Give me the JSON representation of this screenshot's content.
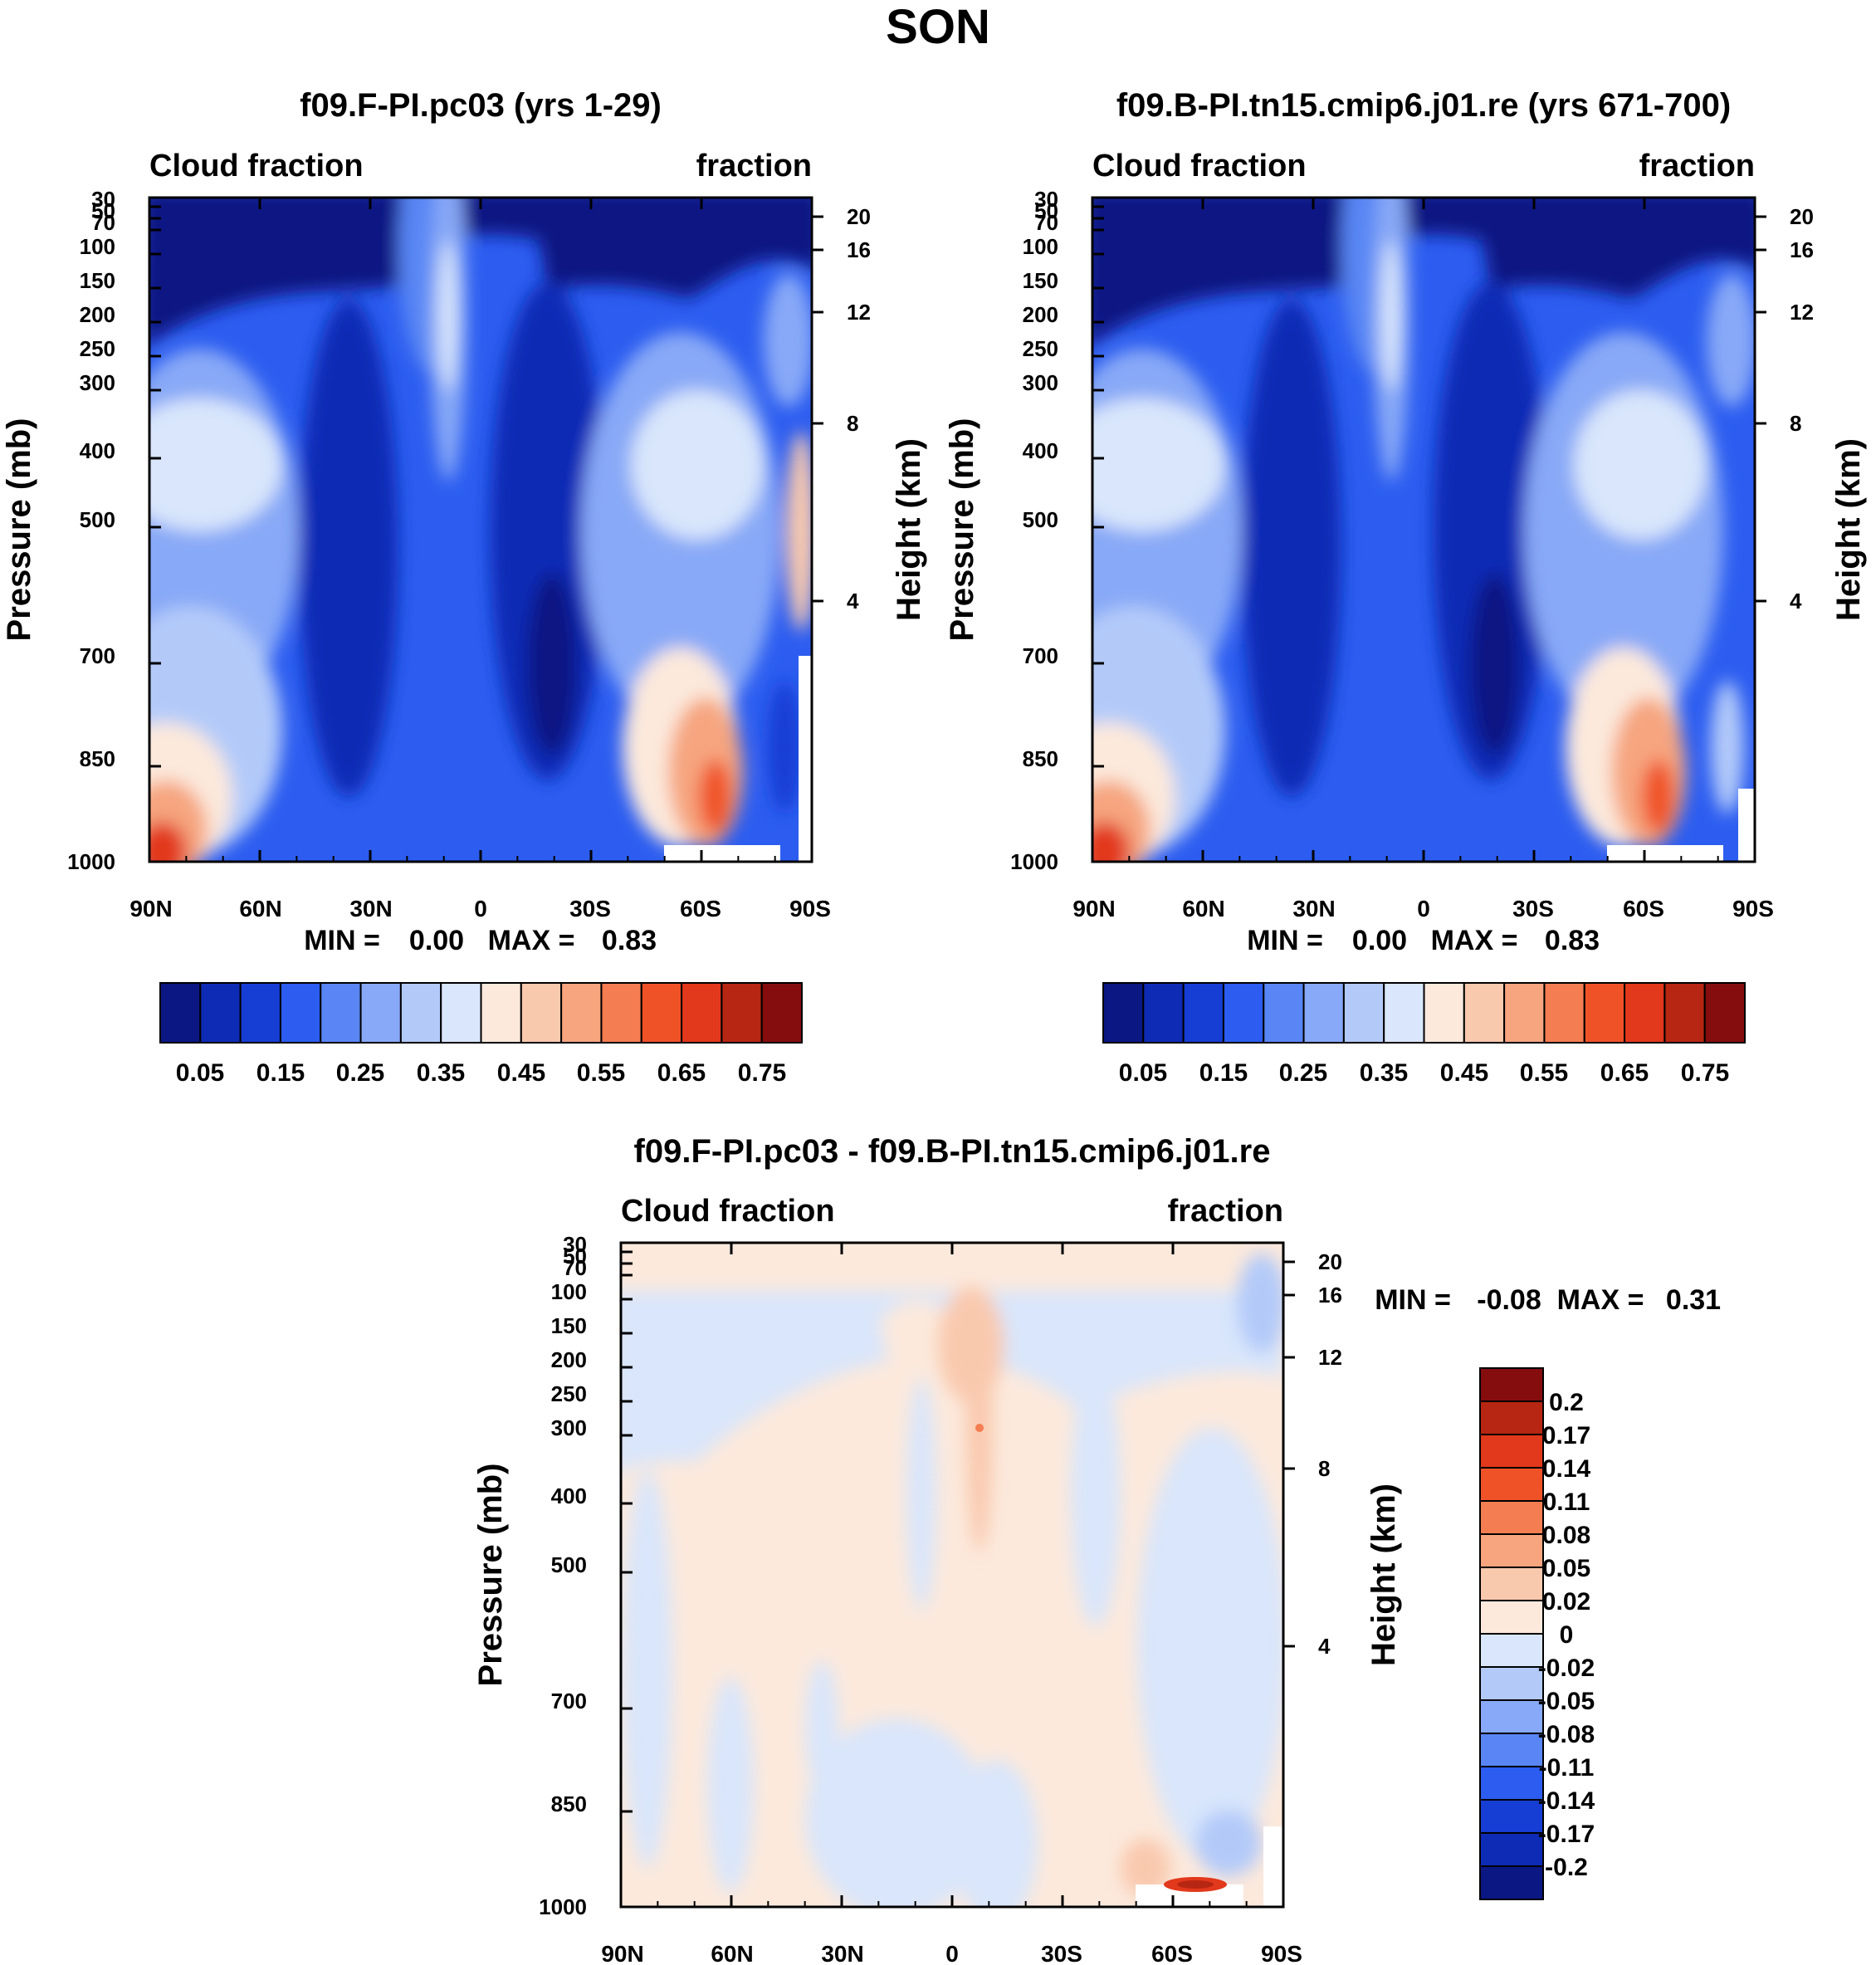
{
  "figure": {
    "title": "SON"
  },
  "chart_data": [
    {
      "type": "heatmap",
      "title": "f09.F-PI.pc03 (yrs 1-29)",
      "left_label": "Cloud fraction",
      "right_label": "fraction",
      "ylabel": "Pressure (mb)",
      "y2label": "Height (km)",
      "x_ticks": [
        "90N",
        "60N",
        "30N",
        "0",
        "30S",
        "60S",
        "90S"
      ],
      "y_ticks": [
        "30",
        "50",
        "70",
        "100",
        "150",
        "200",
        "250",
        "300",
        "400",
        "500",
        "700",
        "850",
        "1000"
      ],
      "y2_ticks": [
        "20",
        "16",
        "12",
        "8",
        "4"
      ],
      "stats": {
        "min_label": "MIN =",
        "min_value": "0.00",
        "max_label": "MAX =",
        "max_value": "0.83"
      },
      "colorbar": {
        "levels": [
          "0.05",
          "0.15",
          "0.25",
          "0.35",
          "0.45",
          "0.55",
          "0.65",
          "0.75"
        ],
        "colors": [
          "#0b1782",
          "#0e2bb5",
          "#163ed4",
          "#2c5df0",
          "#5986f4",
          "#88a9f7",
          "#b3caf9",
          "#d9e6fb",
          "#fce9dc",
          "#f9c9ae",
          "#f6a57f",
          "#f47d51",
          "#f05228",
          "#e2381b",
          "#b72612",
          "#860d0d"
        ]
      }
    },
    {
      "type": "heatmap",
      "title": "f09.B-PI.tn15.cmip6.j01.re (yrs 671-700)",
      "left_label": "Cloud fraction",
      "right_label": "fraction",
      "ylabel": "Pressure (mb)",
      "y2label": "Height (km)",
      "x_ticks": [
        "90N",
        "60N",
        "30N",
        "0",
        "30S",
        "60S",
        "90S"
      ],
      "y_ticks": [
        "30",
        "50",
        "70",
        "100",
        "150",
        "200",
        "250",
        "300",
        "400",
        "500",
        "700",
        "850",
        "1000"
      ],
      "y2_ticks": [
        "20",
        "16",
        "12",
        "8",
        "4"
      ],
      "stats": {
        "min_label": "MIN =",
        "min_value": "0.00",
        "max_label": "MAX =",
        "max_value": "0.83"
      },
      "colorbar": {
        "levels": [
          "0.05",
          "0.15",
          "0.25",
          "0.35",
          "0.45",
          "0.55",
          "0.65",
          "0.75"
        ],
        "colors": [
          "#0b1782",
          "#0e2bb5",
          "#163ed4",
          "#2c5df0",
          "#5986f4",
          "#88a9f7",
          "#b3caf9",
          "#d9e6fb",
          "#fce9dc",
          "#f9c9ae",
          "#f6a57f",
          "#f47d51",
          "#f05228",
          "#e2381b",
          "#b72612",
          "#860d0d"
        ]
      }
    },
    {
      "type": "heatmap",
      "title": "f09.F-PI.pc03 - f09.B-PI.tn15.cmip6.j01.re",
      "left_label": "Cloud fraction",
      "right_label": "fraction",
      "ylabel": "Pressure (mb)",
      "y2label": "Height (km)",
      "x_ticks": [
        "90N",
        "60N",
        "30N",
        "0",
        "30S",
        "60S",
        "90S"
      ],
      "y_ticks": [
        "30",
        "50",
        "70",
        "100",
        "150",
        "200",
        "250",
        "300",
        "400",
        "500",
        "700",
        "850",
        "1000"
      ],
      "y2_ticks": [
        "20",
        "16",
        "12",
        "8",
        "4"
      ],
      "stats": {
        "min_label": "MIN =",
        "min_value": "-0.08",
        "max_label": "MAX =",
        "max_value": "0.31"
      },
      "colorbar": {
        "levels": [
          "0.2",
          "0.17",
          "0.14",
          "0.11",
          "0.08",
          "0.05",
          "0.02",
          "0",
          "-0.02",
          "-0.05",
          "-0.08",
          "-0.11",
          "-0.14",
          "-0.17",
          "-0.2"
        ],
        "colors": [
          "#860d0d",
          "#b72612",
          "#e2381b",
          "#f05228",
          "#f47d51",
          "#f6a57f",
          "#f9c9ae",
          "#fce9dc",
          "#d9e6fb",
          "#b3caf9",
          "#88a9f7",
          "#5986f4",
          "#2c5df0",
          "#163ed4",
          "#0e2bb5",
          "#0b1782"
        ]
      }
    }
  ]
}
